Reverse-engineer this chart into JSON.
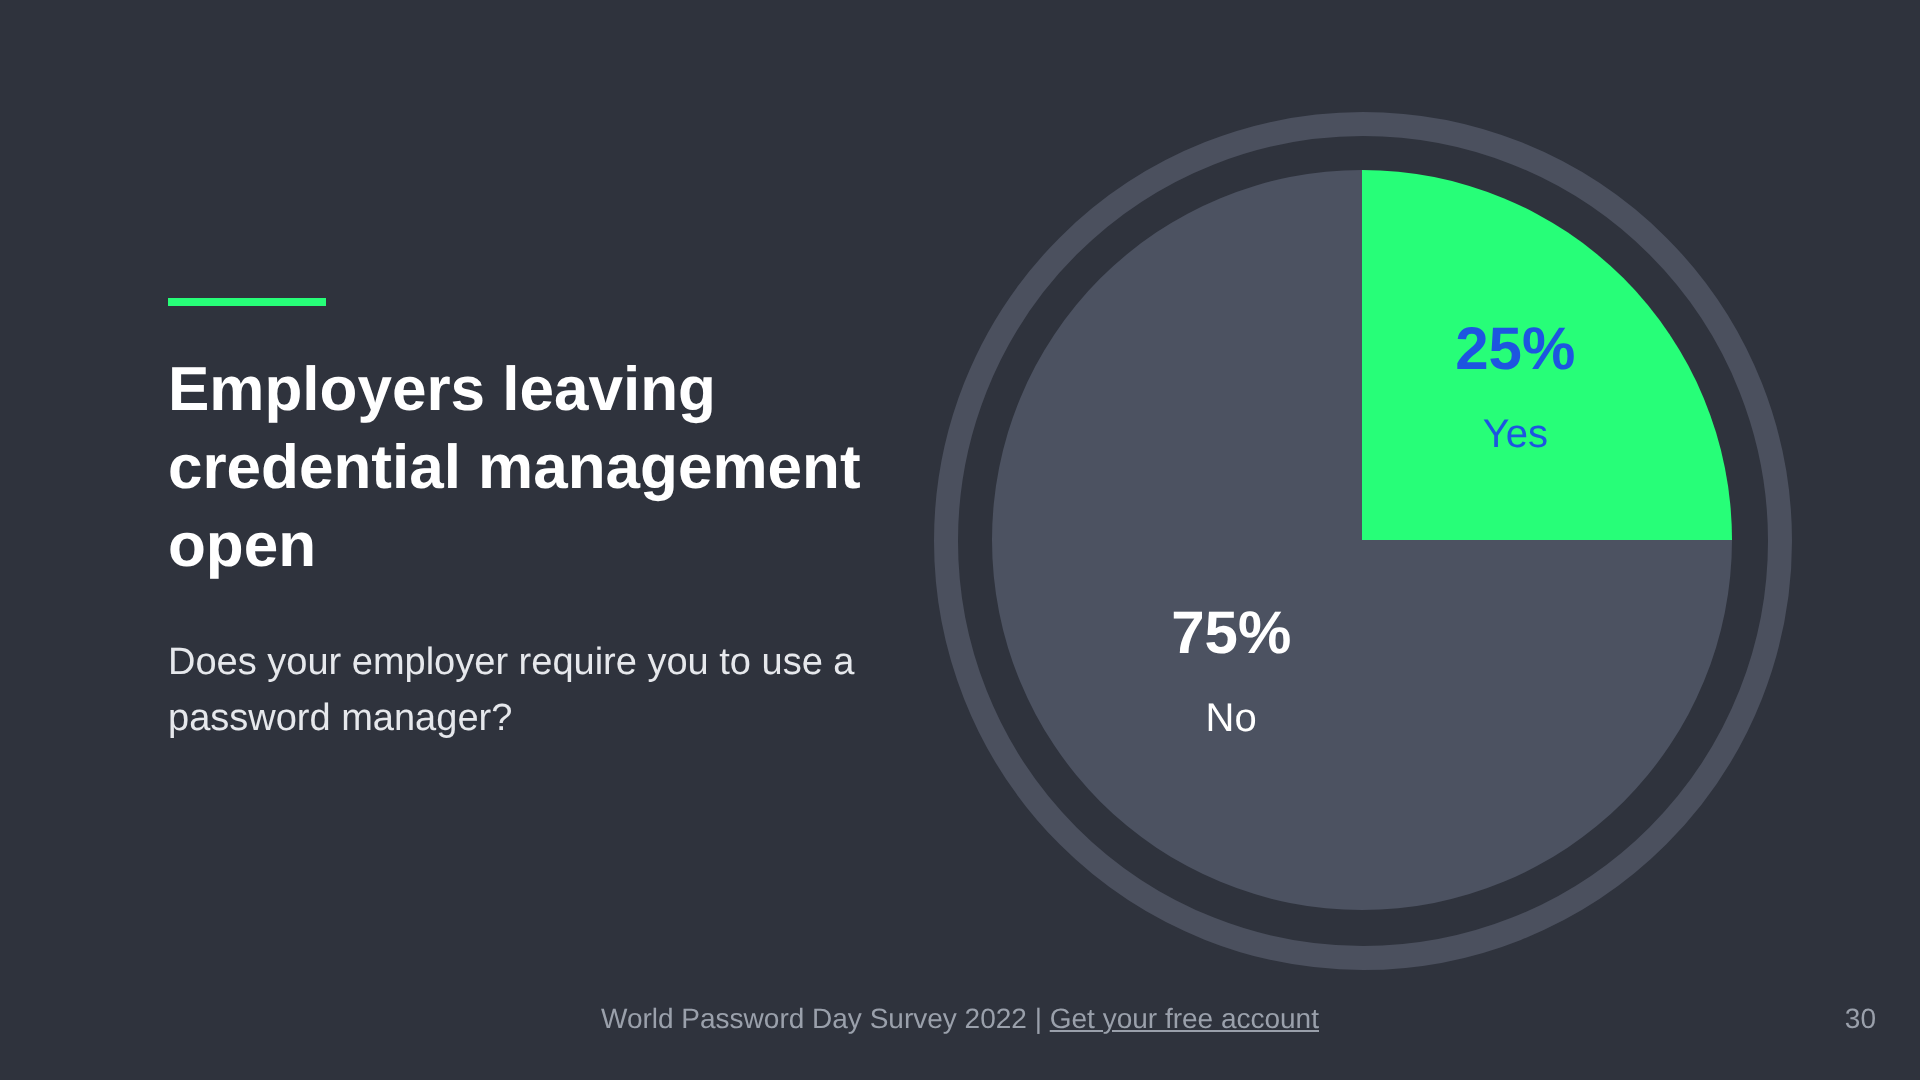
{
  "chart_data": {
    "type": "pie",
    "title": "Employers leaving credential management open",
    "subtitle": "Does your employer require you to use a password manager?",
    "categories": [
      "Yes",
      "No"
    ],
    "values": [
      25,
      75
    ],
    "colors": [
      "#27fe78",
      "#4c5261"
    ],
    "value_labels": [
      "25%",
      "75%"
    ],
    "annotations": [
      "World Password Day Survey 2022 |",
      "Get your free account",
      "30"
    ]
  }
}
